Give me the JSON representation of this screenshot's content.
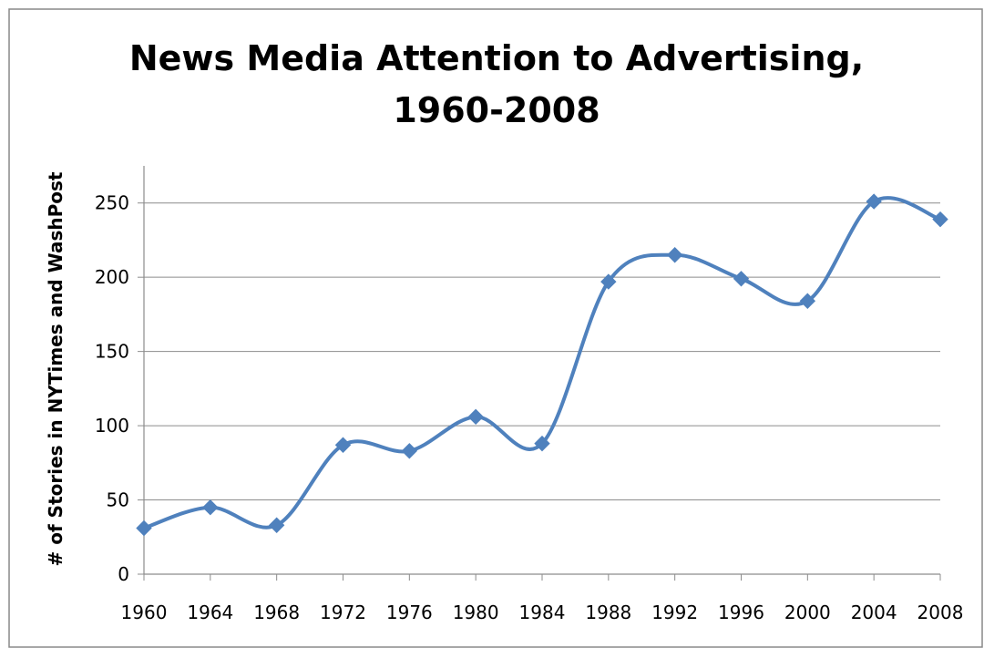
{
  "chart_data": {
    "type": "line",
    "title": [
      "News Media Attention to Advertising,",
      "1960-2008"
    ],
    "xlabel": "",
    "ylabel": "# of Stories in NYTimes and WashPost",
    "x": [
      "1960",
      "1964",
      "1968",
      "1972",
      "1976",
      "1980",
      "1984",
      "1988",
      "1992",
      "1996",
      "2000",
      "2004",
      "2008"
    ],
    "series": [
      {
        "values": [
          31,
          45,
          33,
          87,
          83,
          106,
          88,
          197,
          215,
          199,
          184,
          251,
          239
        ],
        "color": "#4f81bd",
        "marker": "diamond",
        "smooth": true
      }
    ],
    "ylim": [
      0,
      275
    ],
    "yticks": [
      0,
      50,
      100,
      150,
      200,
      250
    ],
    "grid": true,
    "legend": "none"
  }
}
